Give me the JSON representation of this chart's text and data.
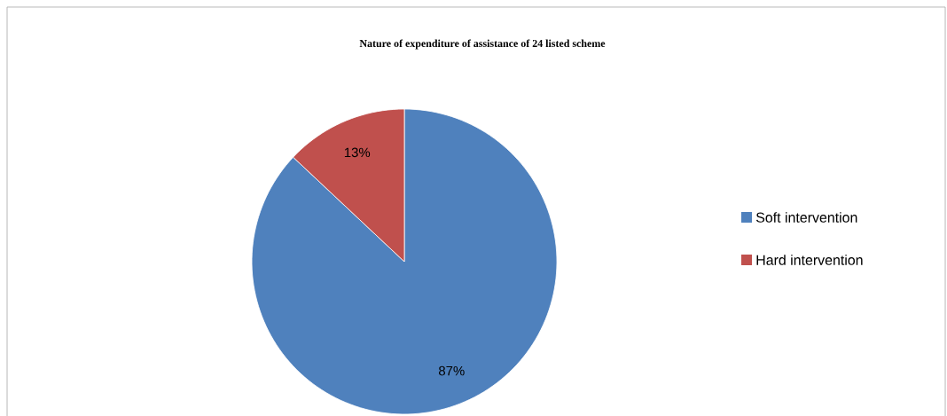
{
  "chart_data": {
    "type": "pie",
    "title": "Nature of expenditure of assistance of 24 listed scheme",
    "categories": [
      "Soft intervention",
      "Hard intervention"
    ],
    "values": [
      87,
      13
    ],
    "colors": [
      "#4f81bd",
      "#c0504d"
    ],
    "value_labels": [
      "87%",
      "13%"
    ],
    "legend": "right"
  }
}
